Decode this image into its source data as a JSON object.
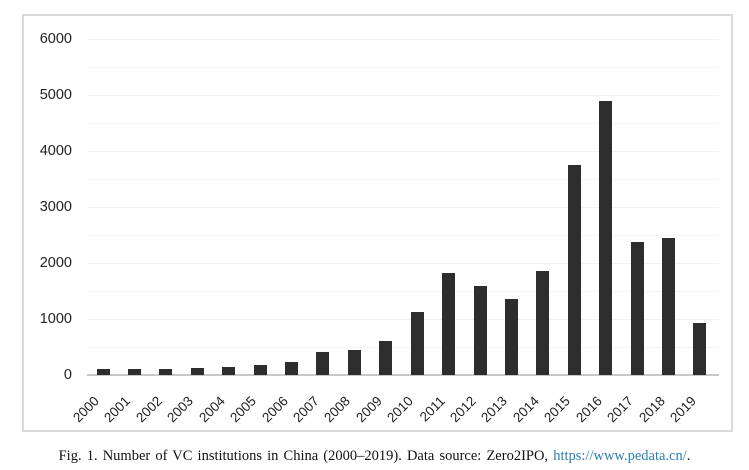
{
  "figure_caption": {
    "prefix": "Fig. 1. Number of VC institutions in China (2000–2019). Data source: Zero2IPO, ",
    "link_text": "https://www.pedata.cn/",
    "suffix": "."
  },
  "colors": {
    "bar": "#2d2d2d",
    "axis_line": "#c8c8c8",
    "frame_border": "#dadada",
    "gridline": "#f5f5f5",
    "ytick_text": "#232323",
    "xtick_text": "#1f1f1f",
    "caption_text": "#111111",
    "link": "#2e7cb5"
  },
  "chart_data": {
    "type": "bar",
    "title": "",
    "xlabel": "",
    "ylabel": "",
    "categories": [
      "2000",
      "2001",
      "2002",
      "2003",
      "2004",
      "2005",
      "2006",
      "2007",
      "2008",
      "2009",
      "2010",
      "2011",
      "2012",
      "2013",
      "2014",
      "2015",
      "2016",
      "2017",
      "2018",
      "2019"
    ],
    "values": [
      100,
      110,
      100,
      120,
      140,
      180,
      230,
      410,
      450,
      610,
      1130,
      1830,
      1590,
      1360,
      1860,
      3750,
      4900,
      2370,
      2450,
      920
    ],
    "ylim": [
      0,
      6000
    ],
    "yticks": [
      0,
      1000,
      2000,
      3000,
      4000,
      5000,
      6000
    ],
    "gridline_interval": 500,
    "grid": "horizontal-faint",
    "legend": "none",
    "bar_color": "#2d2d2d",
    "x_label_rotation_deg": 45
  }
}
